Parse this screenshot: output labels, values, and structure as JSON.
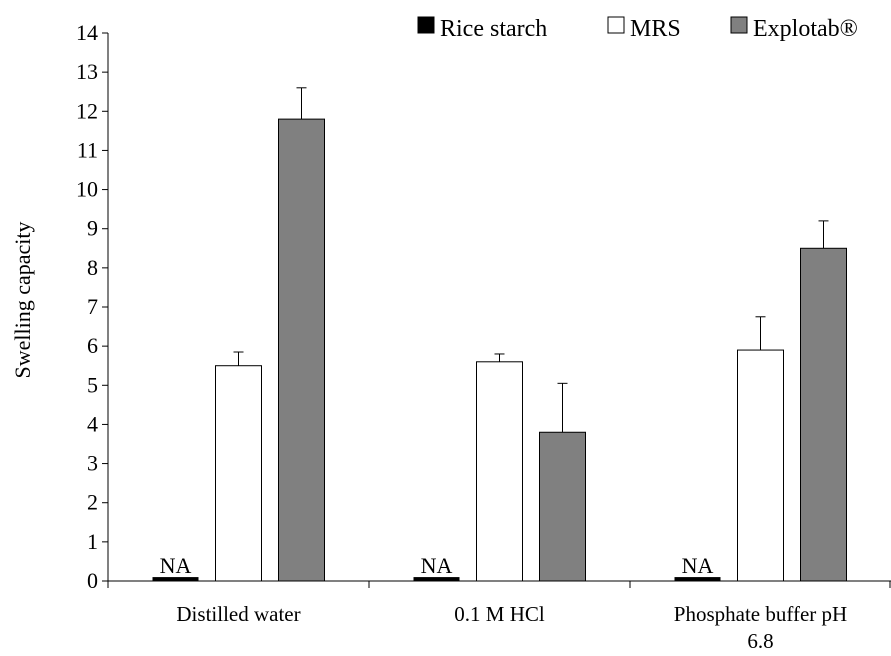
{
  "chart_data": {
    "type": "bar",
    "title": "",
    "xlabel": "",
    "ylabel": "Swelling capacity",
    "ylim": [
      0,
      14
    ],
    "yticks": [
      0,
      1,
      2,
      3,
      4,
      5,
      6,
      7,
      8,
      9,
      10,
      11,
      12,
      13,
      14
    ],
    "grid": false,
    "legend_position": "top-right",
    "categories": [
      [
        "Distilled water"
      ],
      [
        "0.1 M HCl"
      ],
      [
        "Phosphate buffer pH",
        "6.8"
      ]
    ],
    "series": [
      {
        "name": "Rice starch",
        "color": "#000000",
        "values": [
          0.1,
          0.1,
          0.1
        ],
        "errors": [
          0,
          0,
          0
        ],
        "labels": [
          "NA",
          "NA",
          "NA"
        ]
      },
      {
        "name": "MRS",
        "color": "#ffffff",
        "values": [
          5.5,
          5.6,
          5.9
        ],
        "errors": [
          0.35,
          0.2,
          0.85
        ],
        "labels": [
          "",
          "",
          ""
        ]
      },
      {
        "name": "Explotab®",
        "color": "#808080",
        "values": [
          11.8,
          3.8,
          8.5
        ],
        "errors": [
          0.8,
          1.25,
          0.7
        ],
        "labels": [
          "",
          "",
          ""
        ]
      }
    ]
  }
}
